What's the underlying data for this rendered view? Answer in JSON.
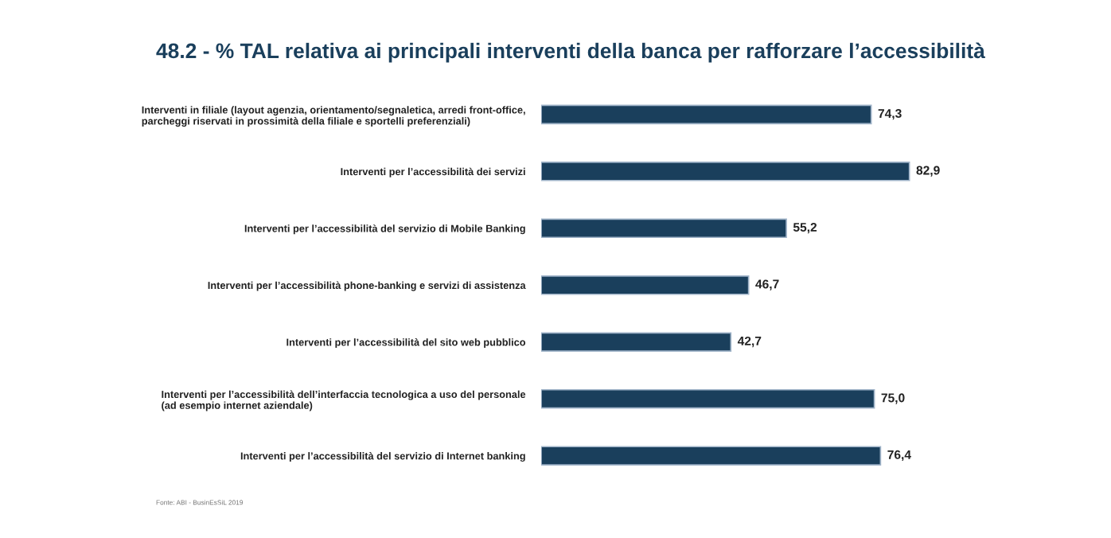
{
  "chart_data": {
    "type": "bar",
    "orientation": "horizontal",
    "title": "48.2 - % TAL relativa ai principali interventi della banca per rafforzare l’accessibilità",
    "categories": [
      "Interventi in filiale (layout agenzia, orientamento/segnaletica, arredi front-office,\nparcheggi riservati in prossimità della filiale e sportelli preferenziali)",
      "Interventi per l’accessibilità dei servizi",
      "Interventi per l’accessibilità del servizio di Mobile Banking",
      "Interventi per l’accessibilità phone-banking e servizi di assistenza",
      "Interventi per l’accessibilità del sito web pubblico",
      "Interventi per l’accessibilità dell’interfaccia tecnologica a uso del personale\n(ad esempio internet aziendale)",
      "Interventi per l’accessibilità del servizio di Internet banking"
    ],
    "values": [
      74.3,
      82.9,
      55.2,
      46.7,
      42.7,
      75.0,
      76.4
    ],
    "value_labels": [
      "74,3",
      "82,9",
      "55,2",
      "46,7",
      "42,7",
      "75,0",
      "76,4"
    ],
    "color": "#1a3f5c",
    "annotations": [
      "Fonte: ABI - BusinEsSiL 2019"
    ],
    "grid": false,
    "legend": false,
    "tick_labels": "y"
  }
}
